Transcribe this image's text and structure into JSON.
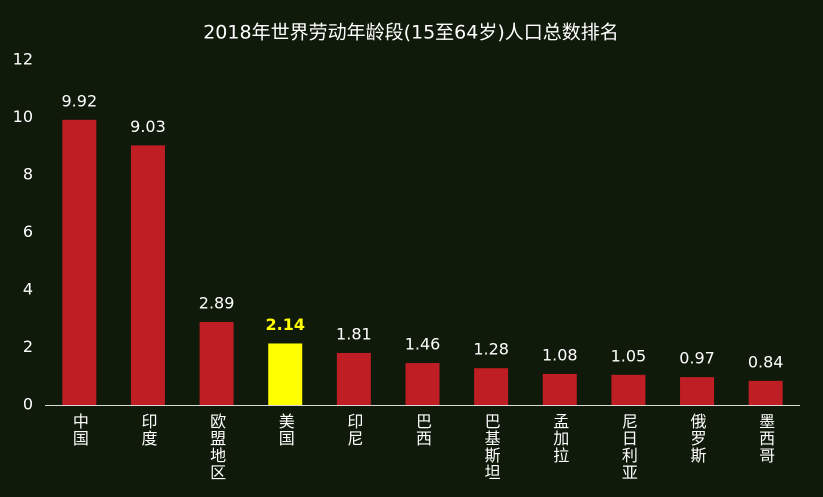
{
  "chart_data": {
    "type": "bar",
    "title": "2018年世界劳动年龄段(15至64岁)人口总数排名",
    "categories": [
      "中国",
      "印度",
      "欧盟地区",
      "美国",
      "印尼",
      "巴西",
      "巴基斯坦",
      "孟加拉",
      "尼日利亚",
      "俄罗斯",
      "墨西哥"
    ],
    "values": [
      9.92,
      9.03,
      2.89,
      2.14,
      1.81,
      1.46,
      1.28,
      1.08,
      1.05,
      0.97,
      0.84
    ],
    "color": "#be1e24",
    "colors": [
      "#be1e24",
      "#be1e24",
      "#be1e24",
      "#ffff00",
      "#be1e24",
      "#be1e24",
      "#be1e24",
      "#be1e24",
      "#be1e24",
      "#be1e24",
      "#be1e24"
    ],
    "value_label_colors": [
      "#ffffff",
      "#ffffff",
      "#ffffff",
      "#ffff00",
      "#ffffff",
      "#ffffff",
      "#ffffff",
      "#ffffff",
      "#ffffff",
      "#ffffff",
      "#ffffff"
    ],
    "ylim": [
      0,
      12
    ],
    "yticks": [
      0,
      2,
      4,
      6,
      8,
      10,
      12
    ],
    "grid": false
  }
}
